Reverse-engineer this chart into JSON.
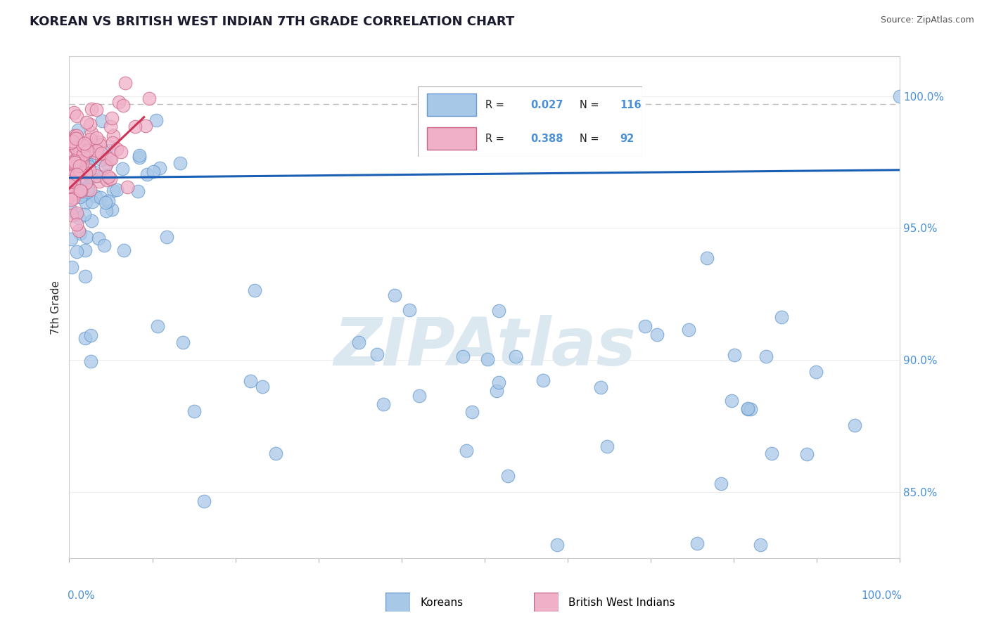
{
  "title": "KOREAN VS BRITISH WEST INDIAN 7TH GRADE CORRELATION CHART",
  "source_text": "Source: ZipAtlas.com",
  "ylabel": "7th Grade",
  "xmin": 0.0,
  "xmax": 100.0,
  "ymin": 82.5,
  "ymax": 101.5,
  "korean_R": 0.027,
  "korean_N": 116,
  "bwi_R": 0.388,
  "bwi_N": 92,
  "korean_color": "#a8c8e8",
  "korean_edge_color": "#6699cc",
  "bwi_color": "#f0b0c8",
  "bwi_edge_color": "#cc6688",
  "trend_blue_color": "#1a5fb4",
  "trend_pink_color": "#cc3355",
  "watermark_text": "ZIPAtlas",
  "watermark_color": "#dce8f0",
  "dashed_line_color": "#bbbbbb",
  "dashed_line_y": 99.7,
  "right_tick_color": "#4a90d9",
  "axis_label_color": "#4a90d9",
  "title_color": "#1a1a2e",
  "source_color": "#555555",
  "grid_color": "#e8e8e8",
  "spine_color": "#cccccc"
}
